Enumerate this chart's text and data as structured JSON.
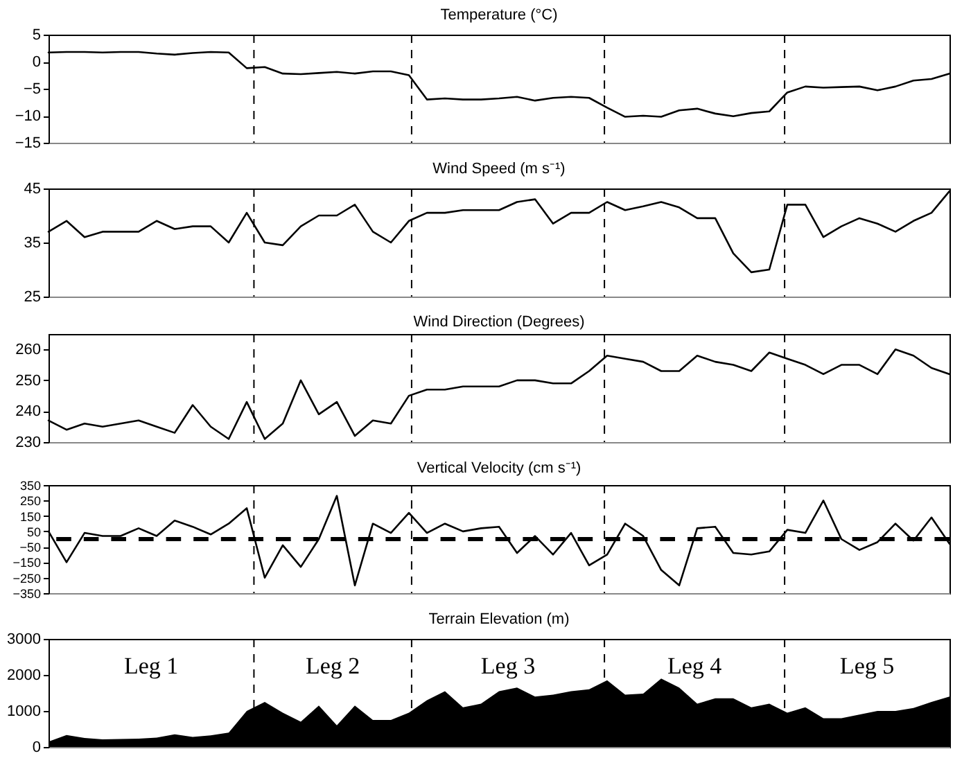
{
  "chart_data": [
    {
      "type": "line",
      "grid": "x",
      "title": "Temperature (°C)",
      "color": "#000000",
      "ylim": [
        -15,
        5
      ],
      "yticks": [
        -15,
        -10,
        -5,
        0,
        5
      ],
      "categories": [
        null,
        null,
        null,
        null,
        null,
        null,
        null,
        null,
        null,
        null,
        null,
        null,
        null,
        null,
        null,
        null,
        null,
        null,
        null,
        null,
        null,
        null,
        null,
        null,
        null,
        null,
        null,
        null,
        null,
        null,
        null,
        null,
        null,
        null,
        null,
        null,
        null,
        null,
        null,
        null,
        null,
        null,
        null,
        null,
        null,
        null,
        null,
        null,
        null,
        null,
        null
      ],
      "values": [
        1.7,
        1.8,
        1.8,
        1.7,
        1.8,
        1.8,
        1.5,
        1.3,
        1.6,
        1.8,
        1.7,
        -1.2,
        -1,
        -2.2,
        -2.3,
        -2.1,
        -1.9,
        -2.2,
        -1.8,
        -1.8,
        -2.5,
        -7,
        -6.8,
        -7,
        -7,
        -6.8,
        -6.5,
        -7.2,
        -6.7,
        -6.5,
        -6.7,
        -8.5,
        -10.2,
        -10,
        -10.2,
        -9,
        -8.7,
        -9.6,
        -10.1,
        -9.5,
        -9.2,
        -5.7,
        -4.6,
        -4.8,
        -4.7,
        -4.6,
        -5.3,
        -4.6,
        -3.5,
        -3.2,
        -2.2
      ]
    },
    {
      "type": "line",
      "grid": "x",
      "title": "Wind Speed (m s⁻¹)",
      "color": "#000000",
      "ylim": [
        25,
        45
      ],
      "yticks": [
        25,
        35,
        45
      ],
      "categories": [
        null,
        null,
        null,
        null,
        null,
        null,
        null,
        null,
        null,
        null,
        null,
        null,
        null,
        null,
        null,
        null,
        null,
        null,
        null,
        null,
        null,
        null,
        null,
        null,
        null,
        null,
        null,
        null,
        null,
        null,
        null,
        null,
        null,
        null,
        null,
        null,
        null,
        null,
        null,
        null,
        null,
        null,
        null,
        null,
        null,
        null,
        null,
        null,
        null,
        null,
        null
      ],
      "values": [
        37,
        39,
        36,
        37,
        37,
        37,
        39,
        37.5,
        38,
        38,
        35,
        40.5,
        35,
        34.5,
        38,
        40,
        40,
        42,
        37,
        35,
        39,
        40.5,
        40.5,
        41,
        41,
        41,
        42.5,
        43,
        38.5,
        40.5,
        40.5,
        42.5,
        41,
        41.7,
        42.5,
        41.5,
        39.5,
        39.5,
        33,
        29.5,
        30,
        42,
        42,
        36,
        38,
        39.5,
        38.5,
        37,
        39,
        40.5,
        44.5
      ]
    },
    {
      "type": "line",
      "grid": "x",
      "title": "Wind Direction (Degrees)",
      "color": "#000000",
      "ylim": [
        230,
        265
      ],
      "yticks": [
        230,
        240,
        250,
        260
      ],
      "categories": [
        null,
        null,
        null,
        null,
        null,
        null,
        null,
        null,
        null,
        null,
        null,
        null,
        null,
        null,
        null,
        null,
        null,
        null,
        null,
        null,
        null,
        null,
        null,
        null,
        null,
        null,
        null,
        null,
        null,
        null,
        null,
        null,
        null,
        null,
        null,
        null,
        null,
        null,
        null,
        null,
        null,
        null,
        null,
        null,
        null,
        null,
        null,
        null,
        null,
        null,
        null
      ],
      "values": [
        237,
        234,
        236,
        235,
        236,
        237,
        235,
        233,
        242,
        235,
        231,
        243,
        231,
        236,
        250,
        239,
        243,
        232,
        237,
        236,
        245,
        247,
        247,
        248,
        248,
        248,
        250,
        250,
        249,
        249,
        253,
        258,
        257,
        256,
        253,
        253,
        258,
        256,
        255,
        253,
        259,
        257,
        255,
        252,
        255,
        255,
        252,
        260,
        258,
        254,
        252
      ]
    },
    {
      "type": "line",
      "grid": "x",
      "title": "Vertical Velocity (cm s⁻¹)",
      "color": "#000000",
      "ylim": [
        -350,
        350
      ],
      "yticks": [
        -350,
        -250,
        -150,
        -50,
        50,
        150,
        250,
        350
      ],
      "categories": [
        null,
        null,
        null,
        null,
        null,
        null,
        null,
        null,
        null,
        null,
        null,
        null,
        null,
        null,
        null,
        null,
        null,
        null,
        null,
        null,
        null,
        null,
        null,
        null,
        null,
        null,
        null,
        null,
        null,
        null,
        null,
        null,
        null,
        null,
        null,
        null,
        null,
        null,
        null,
        null,
        null,
        null,
        null,
        null,
        null,
        null,
        null,
        null,
        null,
        null,
        null
      ],
      "values": [
        50,
        -150,
        40,
        20,
        20,
        70,
        20,
        120,
        80,
        30,
        100,
        200,
        -250,
        -40,
        -180,
        0,
        280,
        -300,
        100,
        40,
        170,
        40,
        100,
        50,
        70,
        80,
        -90,
        20,
        -100,
        40,
        -170,
        -100,
        100,
        20,
        -200,
        -300,
        70,
        80,
        -90,
        -100,
        -80,
        60,
        40,
        250,
        0,
        -70,
        -20,
        100,
        -10,
        140,
        -30
      ],
      "ref_lines": [
        {
          "axis": "y",
          "value": 0,
          "line_style": "dashed",
          "color": "#000000"
        }
      ]
    },
    {
      "type": "area",
      "grid": "x",
      "title": "Terrain Elevation (m)",
      "color": "#000000",
      "ylim": [
        0,
        3000
      ],
      "yticks": [
        0,
        1000,
        2000,
        3000
      ],
      "categories": [
        null,
        null,
        null,
        null,
        null,
        null,
        null,
        null,
        null,
        null,
        null,
        null,
        null,
        null,
        null,
        null,
        null,
        null,
        null,
        null,
        null,
        null,
        null,
        null,
        null,
        null,
        null,
        null,
        null,
        null,
        null,
        null,
        null,
        null,
        null,
        null,
        null,
        null,
        null,
        null,
        null,
        null,
        null,
        null,
        null,
        null,
        null,
        null,
        null,
        null,
        null
      ],
      "values": [
        150,
        330,
        250,
        210,
        220,
        230,
        260,
        350,
        280,
        320,
        400,
        1000,
        1250,
        950,
        700,
        1150,
        600,
        1150,
        750,
        750,
        950,
        1300,
        1550,
        1100,
        1200,
        1550,
        1650,
        1400,
        1450,
        1550,
        1600,
        1850,
        1450,
        1480,
        1900,
        1650,
        1200,
        1350,
        1350,
        1100,
        1200,
        950,
        1100,
        800,
        800,
        900,
        1000,
        1000,
        1080,
        1250,
        1400
      ],
      "annotations": [
        "Leg 1",
        "Leg 2",
        "Leg 3",
        "Leg 4",
        "Leg 5"
      ]
    }
  ]
}
